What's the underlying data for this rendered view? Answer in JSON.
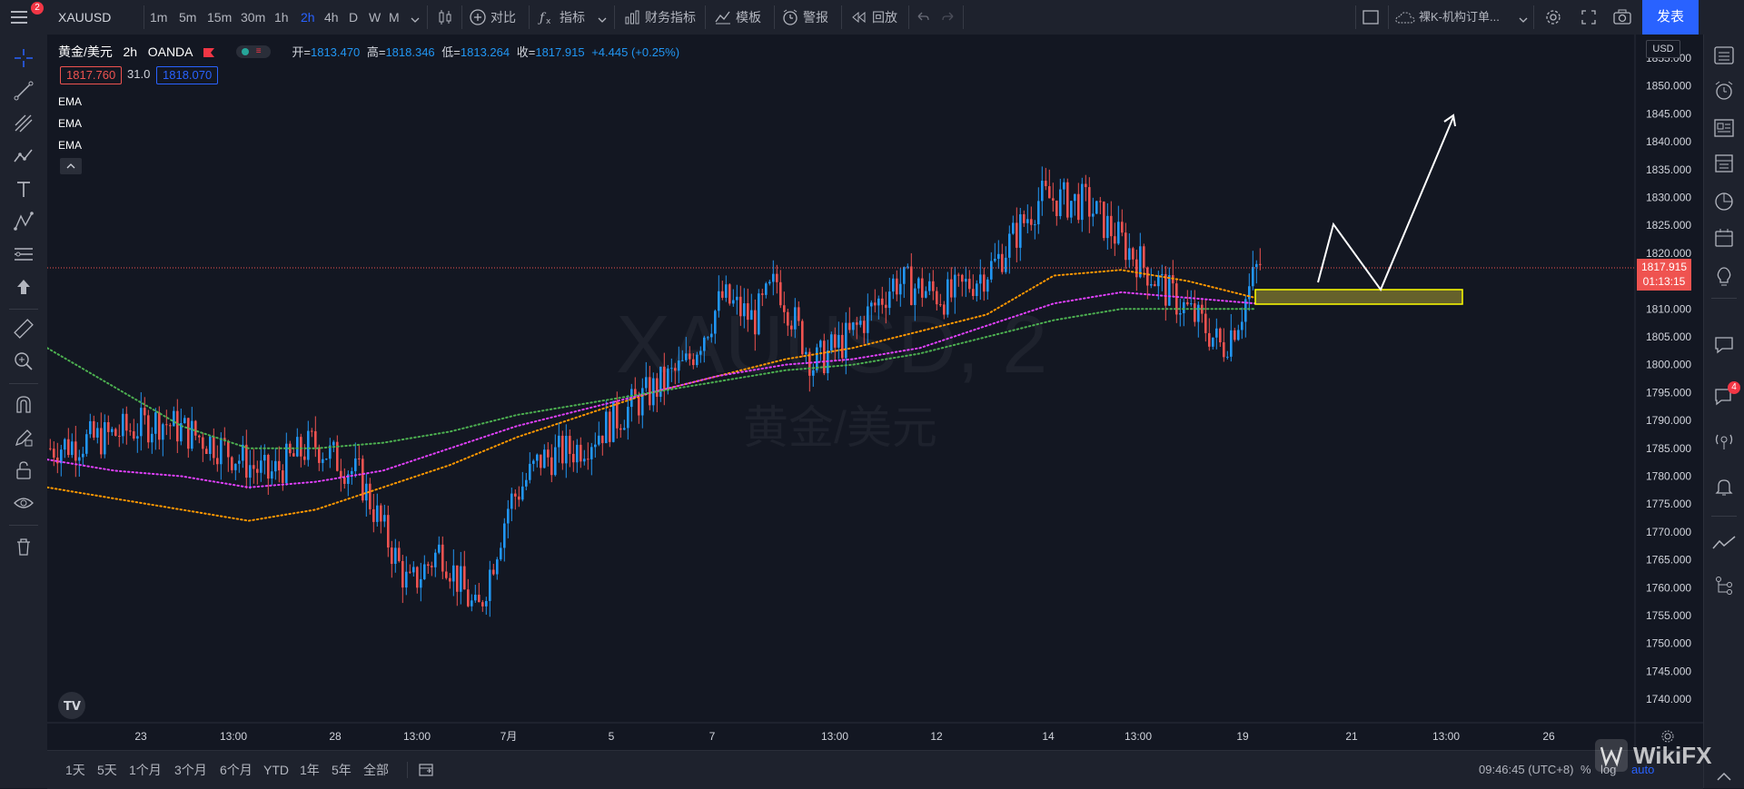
{
  "toolbar": {
    "menu_badge": "2",
    "symbol": "XAUUSD",
    "intervals": [
      "1m",
      "5m",
      "15m",
      "30m",
      "1h",
      "2h",
      "4h",
      "D",
      "W",
      "M"
    ],
    "active_interval": "2h",
    "compare_label": "对比",
    "indicators_label": "指标",
    "financials_label": "财务指标",
    "templates_label": "模板",
    "alert_label": "警报",
    "replay_label": "回放",
    "layout_name": "裸K-机构订单...",
    "publish_label": "发表"
  },
  "legend": {
    "name": "黄金/美元",
    "interval": "2h",
    "source": "OANDA",
    "open_label": "开=",
    "open": "1813.470",
    "high_label": "高=",
    "high": "1818.346",
    "low_label": "低=",
    "low": "1813.264",
    "close_label": "收=",
    "close": "1817.915",
    "change": "+4.445 (+0.25%)",
    "bid": "1817.760",
    "spread": "31.0",
    "ask": "1818.070",
    "ema_labels": [
      "EMA",
      "EMA",
      "EMA"
    ]
  },
  "watermark": {
    "symbol": "XAUUSD, 2",
    "name": "黄金/美元"
  },
  "price_axis": {
    "currency": "USD",
    "ticks": [
      "1855.000",
      "1850.000",
      "1845.000",
      "1840.000",
      "1835.000",
      "1830.000",
      "1825.000",
      "1820.000",
      "1815.000",
      "1810.000",
      "1805.000",
      "1800.000",
      "1795.000",
      "1790.000",
      "1785.000",
      "1780.000",
      "1775.000",
      "1770.000",
      "1765.000",
      "1760.000",
      "1755.000",
      "1750.000",
      "1745.000",
      "1740.000"
    ],
    "last_price": "1817.915",
    "countdown": "01:13:15"
  },
  "time_axis": {
    "ticks": [
      "23",
      "13:00",
      "28",
      "13:00",
      "7月",
      "5",
      "7",
      "13:00",
      "12",
      "14",
      "13:00",
      "19",
      "21",
      "13:00",
      "26"
    ]
  },
  "bottom": {
    "ranges": [
      "1天",
      "5天",
      "1个月",
      "3个月",
      "6个月",
      "YTD",
      "1年",
      "5年",
      "全部"
    ],
    "clock": "09:46:45 (UTC+8)",
    "pct_label": "%",
    "log_label": "log",
    "auto_label": "auto"
  },
  "rightbar": {
    "chat_badge": "4"
  },
  "brand": {
    "wikifx": "WikiFX"
  },
  "colors": {
    "up": "#2196f3",
    "down": "#ef5350",
    "ema_short": "#ff9800",
    "ema_mid": "#e040fb",
    "ema_long": "#4caf50",
    "zone": "#ffff00",
    "accent": "#2962ff"
  },
  "chart_data": {
    "type": "candlestick",
    "symbol": "XAUUSD",
    "interval": "2h",
    "ylim": [
      1737,
      1858
    ],
    "current_price": 1817.915,
    "zone": [
      1811,
      1813.5
    ],
    "projection_path": [
      1813.5,
      1825.5,
      1813.5,
      1845
    ],
    "ema_fast": [
      1778,
      1776,
      1774,
      1772,
      1774,
      1778,
      1782,
      1787,
      1791,
      1795,
      1798,
      1801,
      1803,
      1806,
      1809,
      1816,
      1817,
      1815,
      1812
    ],
    "ema_mid": [
      1783,
      1781,
      1780,
      1778,
      1779,
      1781,
      1785,
      1789,
      1792,
      1795,
      1798,
      1800,
      1801,
      1803,
      1807,
      1811,
      1813,
      1812,
      1811
    ],
    "ema_slow": [
      1803,
      1796,
      1789,
      1785,
      1785,
      1786,
      1788,
      1791,
      1793,
      1795,
      1797,
      1799,
      1800,
      1802,
      1805,
      1808,
      1810,
      1810,
      1810
    ]
  }
}
